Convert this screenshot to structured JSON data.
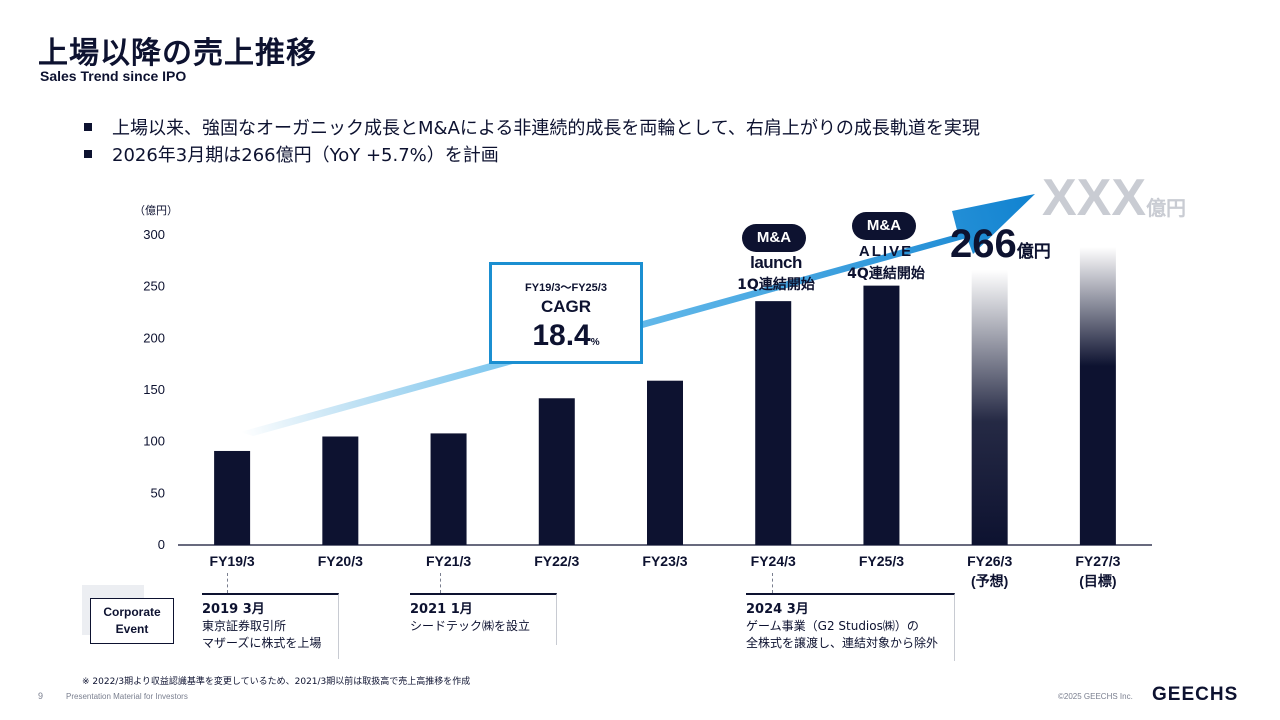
{
  "header": {
    "title": "上場以降の売上推移",
    "subtitle": "Sales Trend since IPO"
  },
  "bullets": [
    "上場以来、強固なオーガニック成長とM&Aによる非連続的成長を両輪として、右肩上がりの成長軌道を実現",
    "2026年3月期は266億円（YoY +5.7%）を計画"
  ],
  "chart_data": {
    "type": "bar",
    "unit_label": "（億円）",
    "categories": [
      "FY19/3",
      "FY20/3",
      "FY21/3",
      "FY22/3",
      "FY23/3",
      "FY24/3",
      "FY25/3",
      "FY26/3",
      "FY27/3"
    ],
    "category_sublabels": [
      "",
      "",
      "",
      "",
      "",
      "",
      "",
      "(予想)",
      "(目標)"
    ],
    "values": [
      91,
      105,
      108,
      142,
      159,
      236,
      251,
      266,
      null
    ],
    "bar_styles": [
      "actual",
      "actual",
      "actual",
      "actual",
      "actual",
      "actual",
      "actual",
      "forecast",
      "target"
    ],
    "ylim": [
      0,
      300
    ],
    "yticks": [
      0,
      50,
      100,
      150,
      200,
      250,
      300
    ],
    "colors": {
      "bar": "#0d1230",
      "arrow": "#1b8fd1",
      "accent": "#1b8fd1"
    }
  },
  "cagr": {
    "period": "FY19/3～FY25/3",
    "label": "CAGR",
    "value": "18.4",
    "unit": "%"
  },
  "acquisitions": [
    {
      "badge": "M&A",
      "logo": "launch",
      "note": "1Q連結開始"
    },
    {
      "badge": "M&A",
      "logo": "ALIVE",
      "note": "4Q連結開始"
    }
  ],
  "forecast": {
    "value": "266",
    "unit": "億円"
  },
  "target": {
    "value": "XXX",
    "unit": "億円"
  },
  "corporate_events": {
    "label_line1": "Corporate",
    "label_line2": "Event",
    "items": [
      {
        "date": "2019 3月",
        "lines": [
          "東京証券取引所",
          "マザーズに株式を上場"
        ]
      },
      {
        "date": "2021 1月",
        "lines": [
          "シードテック㈱を設立"
        ]
      },
      {
        "date": "2024 3月",
        "lines": [
          "ゲーム事業（G2 Studios㈱）の",
          "全株式を譲渡し、連結対象から除外"
        ]
      }
    ]
  },
  "footnote": "※ 2022/3期より収益認識基準を変更しているため、2021/3期以前は取扱高で売上高推移を作成",
  "footer": {
    "page_number": "9",
    "document": "Presentation Material for Investors",
    "copyright": "©2025 GEECHS Inc.",
    "brand": "GEECHS"
  }
}
